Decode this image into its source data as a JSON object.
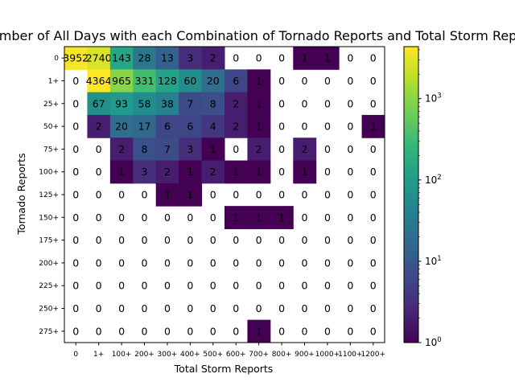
{
  "chart_data": {
    "type": "heatmap",
    "title": "Number of All Days with each Combination of Tornado Reports and Total Storm Reports",
    "xlabel": "Total Storm Reports",
    "ylabel": "Tornado Reports",
    "x_categories": [
      "0",
      "1+",
      "100+",
      "200+",
      "300+",
      "400+",
      "500+",
      "600+",
      "700+",
      "800+",
      "900+",
      "1000+",
      "1100+",
      "1200+"
    ],
    "y_categories": [
      "0",
      "1+",
      "25+",
      "50+",
      "75+",
      "100+",
      "125+",
      "150+",
      "175+",
      "200+",
      "225+",
      "250+",
      "275+"
    ],
    "values": [
      [
        3952,
        2740,
        143,
        28,
        13,
        3,
        2,
        0,
        0,
        0,
        1,
        1,
        0,
        0
      ],
      [
        0,
        4364,
        965,
        331,
        128,
        60,
        20,
        6,
        1,
        0,
        0,
        0,
        0,
        0
      ],
      [
        0,
        67,
        93,
        58,
        38,
        7,
        8,
        2,
        1,
        0,
        0,
        0,
        0,
        0
      ],
      [
        0,
        2,
        20,
        17,
        6,
        6,
        4,
        2,
        1,
        0,
        0,
        0,
        0,
        1
      ],
      [
        0,
        0,
        2,
        8,
        7,
        3,
        1,
        0,
        2,
        0,
        2,
        0,
        0,
        0
      ],
      [
        0,
        0,
        1,
        3,
        2,
        1,
        2,
        1,
        1,
        0,
        1,
        0,
        0,
        0
      ],
      [
        0,
        0,
        0,
        0,
        1,
        1,
        0,
        0,
        0,
        0,
        0,
        0,
        0,
        0
      ],
      [
        0,
        0,
        0,
        0,
        0,
        0,
        0,
        1,
        1,
        1,
        0,
        0,
        0,
        0
      ],
      [
        0,
        0,
        0,
        0,
        0,
        0,
        0,
        0,
        0,
        0,
        0,
        0,
        0,
        0
      ],
      [
        0,
        0,
        0,
        0,
        0,
        0,
        0,
        0,
        0,
        0,
        0,
        0,
        0,
        0
      ],
      [
        0,
        0,
        0,
        0,
        0,
        0,
        0,
        0,
        0,
        0,
        0,
        0,
        0,
        0
      ],
      [
        0,
        0,
        0,
        0,
        0,
        0,
        0,
        0,
        0,
        0,
        0,
        0,
        0,
        0
      ],
      [
        0,
        0,
        0,
        0,
        0,
        0,
        0,
        0,
        1,
        0,
        0,
        0,
        0,
        0
      ]
    ],
    "colormap": "viridis",
    "color_scale": "log",
    "color_range": [
      1,
      4364
    ],
    "colorbar_ticks": [
      1,
      10,
      100,
      1000
    ],
    "colorbar_labels": [
      "10",
      "10",
      "10",
      "10"
    ],
    "colorbar_exponents": [
      "0",
      "1",
      "2",
      "3"
    ],
    "zero_cells": "white",
    "grid": false
  }
}
